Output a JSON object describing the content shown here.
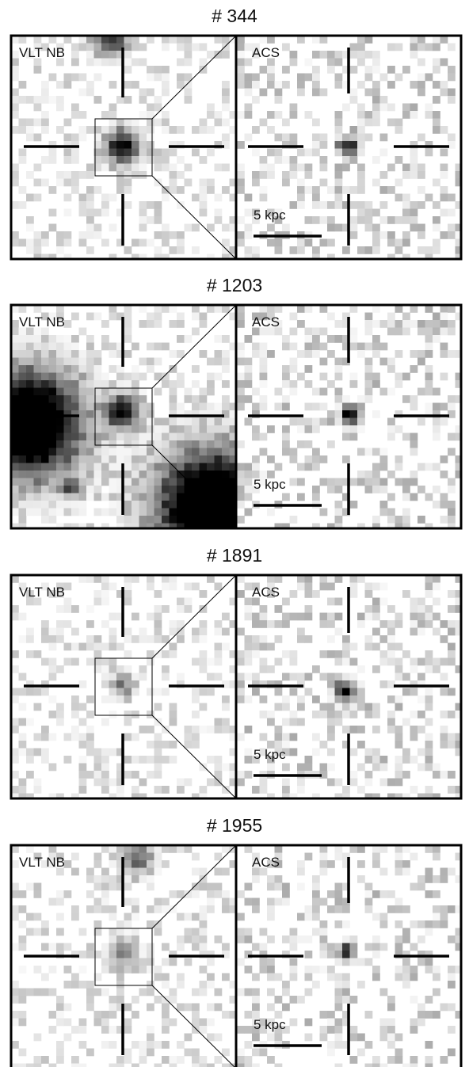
{
  "panels": [
    {
      "title": "# 344",
      "left_label": "VLT NB",
      "right_label": "ACS",
      "scale_label": "5 kpc"
    },
    {
      "title": "# 1203",
      "left_label": "VLT NB",
      "right_label": "ACS",
      "scale_label": "5 kpc"
    },
    {
      "title": "# 1891",
      "left_label": "VLT NB",
      "right_label": "ACS",
      "scale_label": "5 kpc"
    },
    {
      "title": "# 1955",
      "left_label": "VLT NB",
      "right_label": "ACS",
      "scale_label": "5 kpc"
    }
  ]
}
